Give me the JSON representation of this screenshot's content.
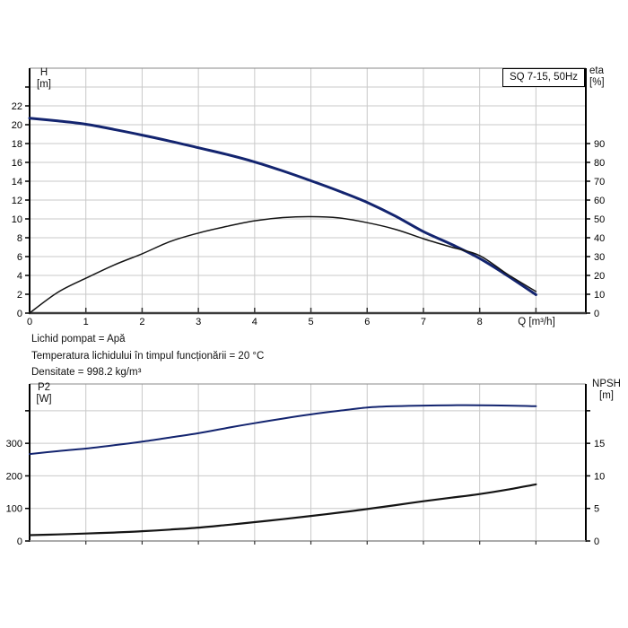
{
  "annotations": {
    "lines": [
      "Lichid pompat = Apă",
      "Temperatura lichidului în timpul funcționării = 20 °C",
      "Densitate = 998.2 kg/m³"
    ]
  },
  "colors": {
    "curve_blue": "#13246f",
    "curve_black": "#141414",
    "gridline": "#c9c9c9",
    "axis": "#000000"
  },
  "chart_data": [
    {
      "type": "line",
      "title": "SQ 7-15, 50Hz",
      "x": {
        "label": "Q [m³/h]",
        "ticks": [
          0,
          1,
          2,
          3,
          4,
          5,
          6,
          7,
          8
        ],
        "unlabeled_ticks": [
          9
        ],
        "range": [
          0,
          9.89
        ],
        "grid": true
      },
      "y_left": {
        "label": "H",
        "unit": "[m]",
        "ticks": [
          0,
          2,
          4,
          6,
          8,
          10,
          12,
          14,
          16,
          18,
          20,
          22
        ],
        "unlabeled_gridlines": [
          24
        ],
        "range": [
          0,
          26
        ]
      },
      "y_right": {
        "label": "eta",
        "unit": "[%]",
        "ticks": [
          0,
          10,
          20,
          30,
          40,
          50,
          60,
          70,
          80,
          90
        ],
        "range": [
          0,
          130
        ]
      },
      "legend": "none",
      "series": [
        {
          "name": "H QH-curve",
          "axis": "left",
          "color": "#13246f",
          "width": 3,
          "x": [
            0,
            0.5,
            1,
            1.5,
            2,
            2.5,
            3,
            3.5,
            4,
            4.5,
            5,
            5.5,
            6,
            6.5,
            7,
            7.5,
            8,
            8.5,
            9
          ],
          "y": [
            20.7,
            20.4,
            20.05,
            19.5,
            18.9,
            18.25,
            17.55,
            16.85,
            16.05,
            15.1,
            14.05,
            12.95,
            11.75,
            10.3,
            8.65,
            7.3,
            5.8,
            3.95,
            1.95
          ]
        },
        {
          "name": "eta efficiency curve",
          "axis": "right",
          "color": "#141414",
          "width": 1.5,
          "x": [
            0,
            0.5,
            1,
            1.5,
            2,
            2.5,
            3,
            3.5,
            4,
            4.5,
            5,
            5.5,
            6,
            6.5,
            7,
            7.5,
            8,
            8.5,
            9
          ],
          "y": [
            0,
            11,
            18.5,
            25.5,
            31.5,
            38,
            42.5,
            46,
            49,
            50.7,
            51.2,
            50.5,
            48,
            44.5,
            39.5,
            35,
            30.5,
            20.5,
            11.5
          ]
        }
      ]
    },
    {
      "type": "line",
      "title": "",
      "x": {
        "label": "",
        "ticks": [],
        "unlabeled_ticks": [
          1,
          2,
          3,
          4,
          5,
          6,
          7,
          8,
          9
        ],
        "range": [
          0,
          9.89
        ],
        "grid": true
      },
      "y_left": {
        "label": "P2",
        "unit": "[W]",
        "ticks": [
          0,
          100,
          200,
          300
        ],
        "unlabeled_gridlines": [
          400
        ],
        "range": [
          0,
          483
        ]
      },
      "y_right": {
        "label": "NPSH",
        "unit": "[m]",
        "ticks": [
          0,
          5,
          10,
          15
        ],
        "unlabeled_gridlines": [
          20
        ],
        "range": [
          0,
          24.1
        ]
      },
      "legend": "none",
      "series": [
        {
          "name": "P2 power curve",
          "axis": "left",
          "color": "#13246f",
          "width": 2,
          "x": [
            0,
            0.5,
            1,
            1.5,
            2,
            2.5,
            3,
            3.5,
            4,
            4.5,
            5,
            5.5,
            6,
            6.5,
            7,
            7.5,
            8,
            8.5,
            9
          ],
          "y": [
            267,
            276,
            284,
            294,
            305,
            318,
            331,
            347,
            362,
            376,
            389,
            400,
            410,
            414,
            416,
            417,
            417,
            416,
            414
          ]
        },
        {
          "name": "NPSH curve",
          "axis": "right",
          "color": "#141414",
          "width": 2.2,
          "x": [
            0,
            0.5,
            1,
            1.5,
            2,
            2.5,
            3,
            3.5,
            4,
            4.5,
            5,
            5.5,
            6,
            6.5,
            7,
            7.5,
            8,
            8.5,
            9
          ],
          "y": [
            0.9,
            1.0,
            1.15,
            1.3,
            1.5,
            1.75,
            2.05,
            2.45,
            2.9,
            3.35,
            3.85,
            4.35,
            4.9,
            5.5,
            6.1,
            6.65,
            7.2,
            7.9,
            8.7
          ]
        }
      ]
    }
  ]
}
